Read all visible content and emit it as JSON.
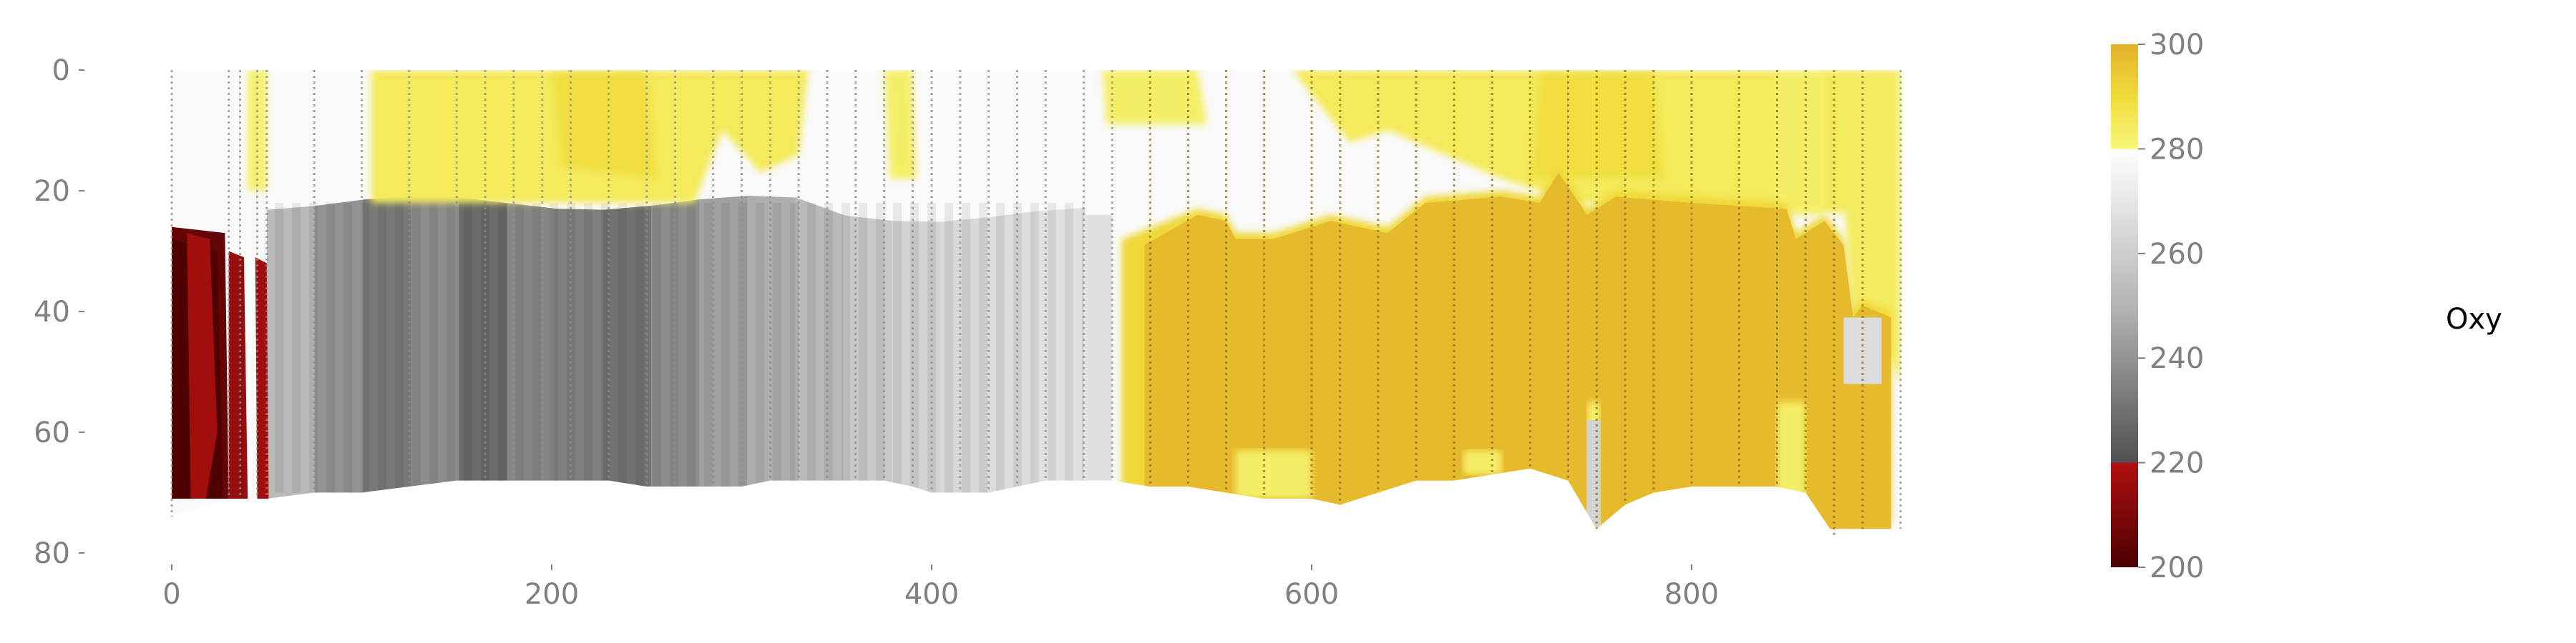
{
  "chart_data": {
    "type": "heatmap",
    "title": "",
    "xlabel": "",
    "ylabel": "",
    "xlim": [
      -30,
      1000
    ],
    "ylim": [
      80,
      0
    ],
    "x_ticks": [
      0,
      200,
      400,
      600,
      800
    ],
    "x_tick_labels": [
      "0",
      "200",
      "400",
      "600",
      "800"
    ],
    "y_ticks": [
      0,
      20,
      40,
      60,
      80
    ],
    "y_tick_labels": [
      "0",
      "20",
      "40",
      "60",
      "80"
    ],
    "grid": false,
    "colorbar": {
      "label": "Oxy",
      "range": [
        200,
        300
      ],
      "ticks": [
        200,
        220,
        240,
        260,
        280,
        300
      ],
      "tick_labels": [
        "200",
        "220",
        "240",
        "260",
        "280",
        "300"
      ],
      "color_stops": [
        {
          "value": 200,
          "color": "#4a0000"
        },
        {
          "value": 220,
          "color": "#b01010"
        },
        {
          "value": 220.01,
          "color": "#505050"
        },
        {
          "value": 250,
          "color": "#b5b5b5"
        },
        {
          "value": 280,
          "color": "#ffffff"
        },
        {
          "value": 280.01,
          "color": "#f7f77a"
        },
        {
          "value": 290,
          "color": "#f0dc3a"
        },
        {
          "value": 300,
          "color": "#e3b12a"
        }
      ]
    },
    "stations_x": [
      0,
      30,
      36,
      45,
      50,
      75,
      100,
      125,
      150,
      165,
      180,
      195,
      210,
      230,
      250,
      265,
      285,
      300,
      315,
      330,
      345,
      360,
      375,
      390,
      400,
      415,
      430,
      445,
      460,
      480,
      495,
      515,
      535,
      555,
      575,
      600,
      615,
      635,
      655,
      675,
      695,
      715,
      735,
      750,
      765,
      780,
      800,
      825,
      845,
      860,
      875,
      890,
      910
    ],
    "station_max_depth": [
      74,
      71,
      71,
      71,
      71,
      70,
      70,
      69,
      68,
      68,
      68,
      68,
      68,
      68,
      69,
      69,
      69,
      69,
      68,
      68,
      68,
      68,
      68,
      69,
      70,
      70,
      70,
      69,
      68,
      68,
      68,
      69,
      69,
      70,
      71,
      71,
      72,
      70,
      68,
      68,
      67,
      66,
      68,
      76,
      72,
      70,
      69,
      69,
      69,
      70,
      77,
      76,
      76
    ],
    "regions": [
      {
        "name": "surface white",
        "oxy": 278,
        "x_range": [
          0,
          910
        ],
        "depth_range": [
          0,
          25
        ]
      },
      {
        "name": "surface high oxygen",
        "oxy": 285,
        "x_range": [
          105,
          335
        ],
        "depth_range": [
          0,
          22
        ]
      },
      {
        "name": "surface high oxygen",
        "oxy": 285,
        "x_range": [
          490,
          910
        ],
        "depth_range": [
          0,
          20
        ]
      },
      {
        "name": "low oxygen",
        "oxy": 212,
        "x_range": [
          0,
          50
        ],
        "depth_range": [
          26,
          71
        ]
      },
      {
        "name": "intermediate",
        "oxy": 240,
        "x_range": [
          50,
          480
        ],
        "depth_range": [
          22,
          70
        ]
      },
      {
        "name": "maximum oxygen",
        "oxy": 298,
        "x_range": [
          500,
          905
        ],
        "depth_range": [
          21,
          70
        ]
      }
    ]
  }
}
